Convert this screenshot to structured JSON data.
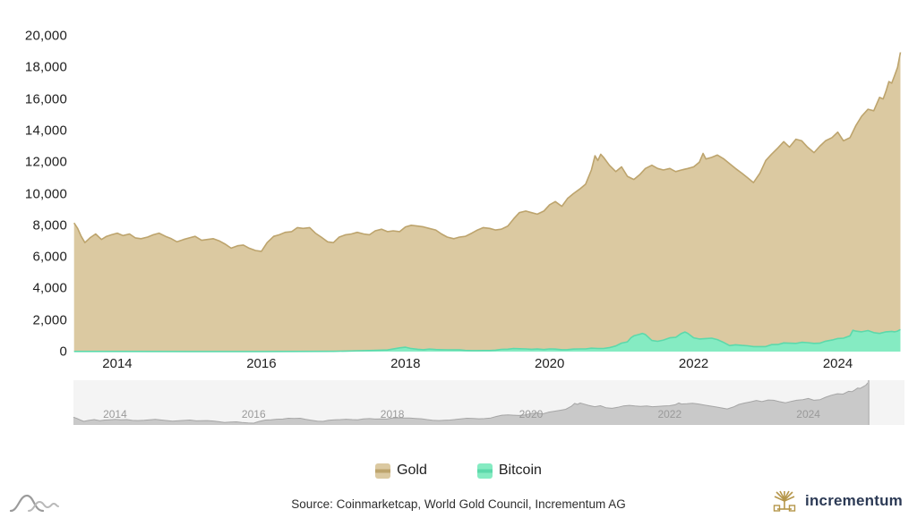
{
  "chart_data": {
    "type": "area",
    "title": "",
    "xlabel": "",
    "ylabel": "",
    "x_domain": [
      2013.4,
      2024.87
    ],
    "ylim": [
      0,
      20000
    ],
    "y_ticks": [
      0,
      2000,
      4000,
      6000,
      8000,
      10000,
      12000,
      14000,
      16000,
      18000,
      20000
    ],
    "x_ticks": [
      2014,
      2016,
      2018,
      2020,
      2022,
      2024
    ],
    "legend_position": "bottom-center",
    "grid": false,
    "series": [
      {
        "name": "Gold",
        "fill_color": "#dbc9a1",
        "line_color": "#bda46d",
        "points": [
          [
            2013.4,
            8150
          ],
          [
            2013.45,
            7800
          ],
          [
            2013.5,
            7300
          ],
          [
            2013.55,
            6900
          ],
          [
            2013.62,
            7200
          ],
          [
            2013.7,
            7450
          ],
          [
            2013.78,
            7100
          ],
          [
            2013.85,
            7300
          ],
          [
            2013.92,
            7400
          ],
          [
            2014.0,
            7500
          ],
          [
            2014.08,
            7350
          ],
          [
            2014.17,
            7450
          ],
          [
            2014.25,
            7200
          ],
          [
            2014.33,
            7150
          ],
          [
            2014.42,
            7250
          ],
          [
            2014.5,
            7400
          ],
          [
            2014.58,
            7500
          ],
          [
            2014.67,
            7300
          ],
          [
            2014.75,
            7150
          ],
          [
            2014.83,
            6950
          ],
          [
            2014.92,
            7100
          ],
          [
            2015.0,
            7200
          ],
          [
            2015.08,
            7300
          ],
          [
            2015.17,
            7050
          ],
          [
            2015.25,
            7100
          ],
          [
            2015.33,
            7150
          ],
          [
            2015.42,
            7000
          ],
          [
            2015.5,
            6800
          ],
          [
            2015.58,
            6550
          ],
          [
            2015.67,
            6700
          ],
          [
            2015.75,
            6750
          ],
          [
            2015.83,
            6550
          ],
          [
            2015.92,
            6400
          ],
          [
            2016.0,
            6350
          ],
          [
            2016.08,
            6900
          ],
          [
            2016.17,
            7300
          ],
          [
            2016.25,
            7400
          ],
          [
            2016.33,
            7550
          ],
          [
            2016.42,
            7600
          ],
          [
            2016.5,
            7850
          ],
          [
            2016.58,
            7800
          ],
          [
            2016.67,
            7850
          ],
          [
            2016.75,
            7500
          ],
          [
            2016.83,
            7250
          ],
          [
            2016.92,
            6950
          ],
          [
            2017.0,
            6900
          ],
          [
            2017.08,
            7250
          ],
          [
            2017.17,
            7400
          ],
          [
            2017.25,
            7450
          ],
          [
            2017.33,
            7550
          ],
          [
            2017.42,
            7450
          ],
          [
            2017.5,
            7400
          ],
          [
            2017.58,
            7650
          ],
          [
            2017.67,
            7750
          ],
          [
            2017.75,
            7600
          ],
          [
            2017.83,
            7650
          ],
          [
            2017.92,
            7600
          ],
          [
            2018.0,
            7900
          ],
          [
            2018.08,
            8000
          ],
          [
            2018.17,
            7950
          ],
          [
            2018.25,
            7900
          ],
          [
            2018.33,
            7800
          ],
          [
            2018.42,
            7700
          ],
          [
            2018.5,
            7450
          ],
          [
            2018.58,
            7250
          ],
          [
            2018.67,
            7150
          ],
          [
            2018.75,
            7250
          ],
          [
            2018.83,
            7300
          ],
          [
            2018.92,
            7500
          ],
          [
            2019.0,
            7700
          ],
          [
            2019.08,
            7850
          ],
          [
            2019.17,
            7800
          ],
          [
            2019.25,
            7700
          ],
          [
            2019.33,
            7750
          ],
          [
            2019.42,
            7950
          ],
          [
            2019.5,
            8400
          ],
          [
            2019.58,
            8800
          ],
          [
            2019.67,
            8900
          ],
          [
            2019.75,
            8800
          ],
          [
            2019.83,
            8700
          ],
          [
            2019.92,
            8900
          ],
          [
            2020.0,
            9300
          ],
          [
            2020.08,
            9500
          ],
          [
            2020.17,
            9200
          ],
          [
            2020.25,
            9700
          ],
          [
            2020.33,
            10000
          ],
          [
            2020.42,
            10300
          ],
          [
            2020.5,
            10600
          ],
          [
            2020.58,
            11500
          ],
          [
            2020.63,
            12400
          ],
          [
            2020.67,
            12100
          ],
          [
            2020.71,
            12500
          ],
          [
            2020.75,
            12300
          ],
          [
            2020.83,
            11800
          ],
          [
            2020.92,
            11400
          ],
          [
            2021.0,
            11700
          ],
          [
            2021.08,
            11100
          ],
          [
            2021.17,
            10900
          ],
          [
            2021.25,
            11200
          ],
          [
            2021.33,
            11600
          ],
          [
            2021.42,
            11800
          ],
          [
            2021.5,
            11600
          ],
          [
            2021.58,
            11500
          ],
          [
            2021.67,
            11600
          ],
          [
            2021.75,
            11400
          ],
          [
            2021.83,
            11500
          ],
          [
            2021.92,
            11600
          ],
          [
            2022.0,
            11700
          ],
          [
            2022.08,
            12000
          ],
          [
            2022.13,
            12550
          ],
          [
            2022.17,
            12200
          ],
          [
            2022.25,
            12300
          ],
          [
            2022.33,
            12450
          ],
          [
            2022.42,
            12200
          ],
          [
            2022.5,
            11900
          ],
          [
            2022.58,
            11600
          ],
          [
            2022.67,
            11300
          ],
          [
            2022.75,
            11000
          ],
          [
            2022.83,
            10700
          ],
          [
            2022.92,
            11300
          ],
          [
            2023.0,
            12100
          ],
          [
            2023.08,
            12500
          ],
          [
            2023.17,
            12900
          ],
          [
            2023.25,
            13300
          ],
          [
            2023.33,
            12950
          ],
          [
            2023.42,
            13450
          ],
          [
            2023.5,
            13350
          ],
          [
            2023.58,
            12950
          ],
          [
            2023.67,
            12600
          ],
          [
            2023.75,
            13000
          ],
          [
            2023.83,
            13350
          ],
          [
            2023.92,
            13550
          ],
          [
            2024.0,
            13900
          ],
          [
            2024.08,
            13350
          ],
          [
            2024.17,
            13550
          ],
          [
            2024.25,
            14300
          ],
          [
            2024.33,
            14900
          ],
          [
            2024.42,
            15350
          ],
          [
            2024.5,
            15250
          ],
          [
            2024.58,
            16100
          ],
          [
            2024.63,
            16000
          ],
          [
            2024.67,
            16500
          ],
          [
            2024.71,
            17100
          ],
          [
            2024.75,
            17000
          ],
          [
            2024.79,
            17500
          ],
          [
            2024.83,
            18000
          ],
          [
            2024.87,
            18950
          ]
        ]
      },
      {
        "name": "Bitcoin",
        "fill_color": "#85ebc2",
        "line_color": "#5cd9ab",
        "points": [
          [
            2013.4,
            10
          ],
          [
            2014.0,
            12
          ],
          [
            2015.0,
            5
          ],
          [
            2016.0,
            8
          ],
          [
            2016.5,
            11
          ],
          [
            2017.0,
            16
          ],
          [
            2017.25,
            40
          ],
          [
            2017.5,
            70
          ],
          [
            2017.75,
            100
          ],
          [
            2017.92,
            240
          ],
          [
            2018.0,
            280
          ],
          [
            2018.08,
            190
          ],
          [
            2018.17,
            150
          ],
          [
            2018.25,
            120
          ],
          [
            2018.33,
            160
          ],
          [
            2018.42,
            130
          ],
          [
            2018.5,
            120
          ],
          [
            2018.58,
            115
          ],
          [
            2018.67,
            110
          ],
          [
            2018.75,
            110
          ],
          [
            2018.83,
            75
          ],
          [
            2018.92,
            65
          ],
          [
            2019.0,
            65
          ],
          [
            2019.08,
            70
          ],
          [
            2019.17,
            70
          ],
          [
            2019.25,
            90
          ],
          [
            2019.33,
            140
          ],
          [
            2019.42,
            155
          ],
          [
            2019.5,
            190
          ],
          [
            2019.58,
            180
          ],
          [
            2019.67,
            170
          ],
          [
            2019.75,
            150
          ],
          [
            2019.83,
            165
          ],
          [
            2019.92,
            130
          ],
          [
            2020.0,
            170
          ],
          [
            2020.08,
            160
          ],
          [
            2020.17,
            120
          ],
          [
            2020.25,
            125
          ],
          [
            2020.33,
            160
          ],
          [
            2020.42,
            170
          ],
          [
            2020.5,
            170
          ],
          [
            2020.58,
            215
          ],
          [
            2020.67,
            200
          ],
          [
            2020.75,
            200
          ],
          [
            2020.83,
            250
          ],
          [
            2020.92,
            355
          ],
          [
            2021.0,
            540
          ],
          [
            2021.08,
            620
          ],
          [
            2021.13,
            880
          ],
          [
            2021.17,
            1000
          ],
          [
            2021.25,
            1100
          ],
          [
            2021.29,
            1150
          ],
          [
            2021.33,
            1080
          ],
          [
            2021.42,
            700
          ],
          [
            2021.5,
            650
          ],
          [
            2021.58,
            730
          ],
          [
            2021.67,
            870
          ],
          [
            2021.75,
            900
          ],
          [
            2021.83,
            1150
          ],
          [
            2021.88,
            1240
          ],
          [
            2021.92,
            1150
          ],
          [
            2022.0,
            870
          ],
          [
            2022.08,
            800
          ],
          [
            2022.17,
            830
          ],
          [
            2022.25,
            850
          ],
          [
            2022.33,
            760
          ],
          [
            2022.42,
            570
          ],
          [
            2022.5,
            380
          ],
          [
            2022.58,
            430
          ],
          [
            2022.67,
            390
          ],
          [
            2022.75,
            370
          ],
          [
            2022.83,
            320
          ],
          [
            2022.92,
            320
          ],
          [
            2023.0,
            320
          ],
          [
            2023.08,
            440
          ],
          [
            2023.17,
            450
          ],
          [
            2023.25,
            550
          ],
          [
            2023.33,
            530
          ],
          [
            2023.42,
            520
          ],
          [
            2023.5,
            590
          ],
          [
            2023.58,
            565
          ],
          [
            2023.67,
            520
          ],
          [
            2023.75,
            530
          ],
          [
            2023.83,
            660
          ],
          [
            2023.92,
            730
          ],
          [
            2024.0,
            830
          ],
          [
            2024.08,
            850
          ],
          [
            2024.17,
            1000
          ],
          [
            2024.21,
            1350
          ],
          [
            2024.25,
            1300
          ],
          [
            2024.33,
            1250
          ],
          [
            2024.42,
            1330
          ],
          [
            2024.5,
            1200
          ],
          [
            2024.58,
            1150
          ],
          [
            2024.67,
            1250
          ],
          [
            2024.75,
            1280
          ],
          [
            2024.79,
            1250
          ],
          [
            2024.83,
            1300
          ],
          [
            2024.87,
            1400
          ]
        ]
      }
    ],
    "navigator": {
      "present": true,
      "background_color": "#f4f4f4",
      "area_fill_color": "#c9c9c9",
      "area_line_color": "#a6a6a6",
      "label_color": "#9a9a9a",
      "x_ticks": [
        2014,
        2016,
        2018,
        2020,
        2022,
        2024
      ],
      "based_on_series": "Gold"
    }
  },
  "legend": {
    "items": [
      {
        "label": "Gold",
        "fill": "#dbc9a1",
        "line": "#bda46d"
      },
      {
        "label": "Bitcoin",
        "fill": "#85ebc2",
        "line": "#5cd9ab"
      }
    ]
  },
  "footer": {
    "source": "Source: Coinmarketcap, World Gold Council, Incrementum AG",
    "brand": "incrementum",
    "brand_color": "#2c3a55",
    "brand_icon_color": "#b5964a",
    "corner_mark_color": "#9b9b9b"
  }
}
